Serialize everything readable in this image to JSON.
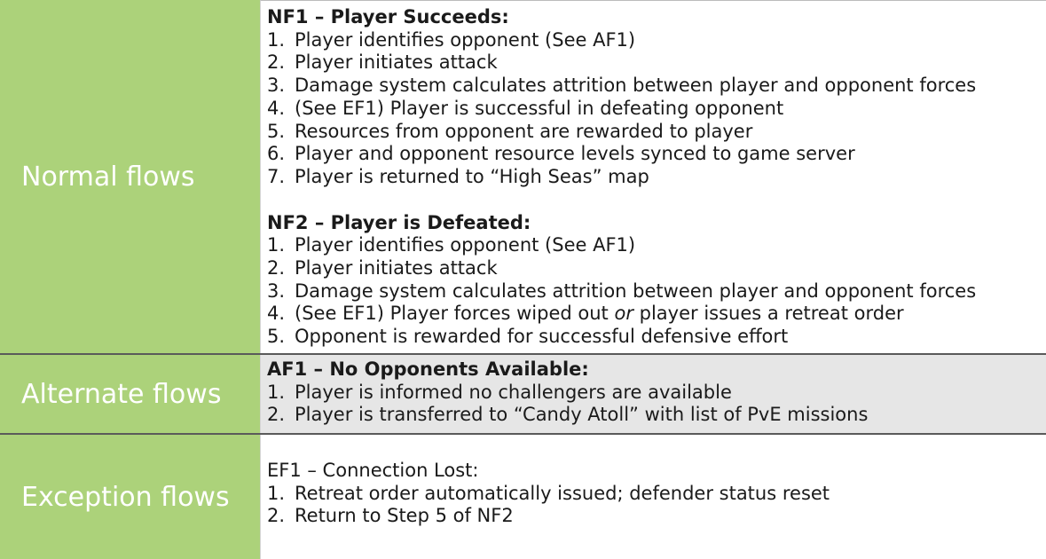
{
  "rows": {
    "normal": {
      "label": "Normal flows",
      "nf1": {
        "title": "NF1 – Player Succeeds:",
        "steps": [
          {
            "num": "1.",
            "text": "Player identifies opponent (See AF1)"
          },
          {
            "num": "2.",
            "text": "Player initiates attack"
          },
          {
            "num": "3.",
            "text": "Damage system calculates attrition between player and opponent forces"
          },
          {
            "num": "4.",
            "text": "(See EF1) Player is successful in defeating opponent"
          },
          {
            "num": "5.",
            "text": "Resources from opponent are rewarded to player"
          },
          {
            "num": "6.",
            "text": "Player and opponent resource levels synced to game server"
          },
          {
            "num": "7.",
            "text": "Player is returned to “High Seas” map"
          }
        ]
      },
      "nf2": {
        "title": "NF2 – Player is Defeated:",
        "steps": [
          {
            "num": "1.",
            "text": "Player identifies opponent (See AF1)"
          },
          {
            "num": "2.",
            "text": "Player initiates attack"
          },
          {
            "num": "3.",
            "text": "Damage system calculates attrition between player and opponent forces"
          },
          {
            "num": "4.",
            "text_before": "(See EF1) Player forces wiped out ",
            "text_em": "or",
            "text_after": " player issues a retreat order"
          },
          {
            "num": "5.",
            "text": "Opponent is rewarded for successful defensive effort"
          }
        ]
      }
    },
    "alternate": {
      "label": "Alternate flows",
      "title": "AF1 – No Opponents Available:",
      "steps": [
        {
          "num": "1.",
          "text": "Player is informed no challengers are available"
        },
        {
          "num": "2.",
          "text": "Player is transferred to “Candy Atoll” with list of PvE missions"
        }
      ]
    },
    "exception": {
      "label": "Exception flows",
      "title": "EF1 – Connection Lost:",
      "steps": [
        {
          "num": "1.",
          "text": "Retreat order automatically issued; defender status reset"
        },
        {
          "num": "2.",
          "text": "Return to Step 5 of NF2"
        }
      ]
    }
  },
  "colors": {
    "label_bg": "#acd27a",
    "label_text": "#ffffff",
    "alt_row_bg": "#e6e6e6"
  }
}
